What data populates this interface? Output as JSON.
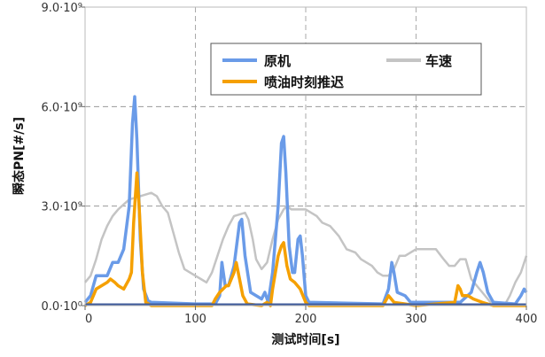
{
  "chart_data": {
    "type": "line",
    "title": "",
    "xlabel": "测试时间[s]",
    "ylabel": "瞬态PN[#/s]",
    "xlim": [
      0,
      400
    ],
    "ylim": [
      0,
      9000000000.0
    ],
    "x_ticks": [
      "0",
      "100",
      "200",
      "300",
      "400"
    ],
    "y_ticks": [
      "0.0·10⁰",
      "3.0·10⁹",
      "6.0·10⁹",
      "9.0·10⁹"
    ],
    "grid": "dashed, at x=100/200/300 and y=3.0·10⁹/6.0·10⁹",
    "legend_position": "top-right",
    "series": [
      {
        "name": "原机",
        "color": "#6a9be8",
        "points": [
          [
            0,
            0.1
          ],
          [
            5,
            0.3
          ],
          [
            10,
            0.9
          ],
          [
            15,
            0.9
          ],
          [
            20,
            0.9
          ],
          [
            25,
            1.3
          ],
          [
            30,
            1.3
          ],
          [
            35,
            1.7
          ],
          [
            40,
            3.0
          ],
          [
            43,
            5.5
          ],
          [
            45,
            6.3
          ],
          [
            47,
            5.0
          ],
          [
            50,
            2.0
          ],
          [
            53,
            0.5
          ],
          [
            57,
            0.15
          ],
          [
            60,
            0.1
          ],
          [
            100,
            0.05
          ],
          [
            118,
            0.05
          ],
          [
            122,
            0.3
          ],
          [
            124,
            1.3
          ],
          [
            127,
            0.6
          ],
          [
            130,
            0.6
          ],
          [
            135,
            1.2
          ],
          [
            140,
            2.5
          ],
          [
            142,
            2.6
          ],
          [
            145,
            1.5
          ],
          [
            150,
            0.4
          ],
          [
            155,
            0.3
          ],
          [
            160,
            0.2
          ],
          [
            163,
            0.4
          ],
          [
            166,
            0.1
          ],
          [
            170,
            1.0
          ],
          [
            175,
            3.0
          ],
          [
            178,
            4.9
          ],
          [
            180,
            5.1
          ],
          [
            182,
            4.0
          ],
          [
            185,
            1.8
          ],
          [
            188,
            1.0
          ],
          [
            190,
            1.0
          ],
          [
            193,
            2.0
          ],
          [
            195,
            2.1
          ],
          [
            197,
            1.5
          ],
          [
            200,
            0.3
          ],
          [
            203,
            0.1
          ],
          [
            270,
            0.05
          ],
          [
            275,
            0.5
          ],
          [
            278,
            1.3
          ],
          [
            280,
            1.0
          ],
          [
            283,
            0.4
          ],
          [
            290,
            0.3
          ],
          [
            295,
            0.1
          ],
          [
            340,
            0.1
          ],
          [
            350,
            0.4
          ],
          [
            355,
            1.0
          ],
          [
            358,
            1.3
          ],
          [
            361,
            1.0
          ],
          [
            365,
            0.4
          ],
          [
            370,
            0.1
          ],
          [
            390,
            0.05
          ],
          [
            395,
            0.3
          ],
          [
            398,
            0.5
          ],
          [
            400,
            0.4
          ]
        ]
      },
      {
        "name": "喷油时刻推迟",
        "color": "#f5a000",
        "points": [
          [
            0,
            0
          ],
          [
            5,
            0.1
          ],
          [
            10,
            0.5
          ],
          [
            15,
            0.6
          ],
          [
            20,
            0.7
          ],
          [
            23,
            0.8
          ],
          [
            27,
            0.7
          ],
          [
            30,
            0.6
          ],
          [
            35,
            0.5
          ],
          [
            40,
            0.8
          ],
          [
            42,
            1.0
          ],
          [
            44,
            2.5
          ],
          [
            47,
            4.0
          ],
          [
            49,
            3.0
          ],
          [
            52,
            1.0
          ],
          [
            55,
            0.1
          ],
          [
            60,
            0
          ],
          [
            115,
            0
          ],
          [
            118,
            0.2
          ],
          [
            122,
            0.4
          ],
          [
            128,
            0.6
          ],
          [
            130,
            0.6
          ],
          [
            135,
            1.0
          ],
          [
            137,
            1.3
          ],
          [
            140,
            0.8
          ],
          [
            143,
            0.3
          ],
          [
            147,
            0.05
          ],
          [
            160,
            0
          ],
          [
            165,
            0.1
          ],
          [
            168,
            0
          ],
          [
            170,
            0.5
          ],
          [
            175,
            1.5
          ],
          [
            178,
            1.8
          ],
          [
            180,
            1.9
          ],
          [
            183,
            1.2
          ],
          [
            186,
            0.8
          ],
          [
            190,
            0.7
          ],
          [
            195,
            0.5
          ],
          [
            200,
            0.1
          ],
          [
            203,
            0
          ],
          [
            270,
            0
          ],
          [
            275,
            0.3
          ],
          [
            280,
            0.1
          ],
          [
            290,
            0.05
          ],
          [
            300,
            0
          ],
          [
            335,
            0.1
          ],
          [
            338,
            0.6
          ],
          [
            340,
            0.5
          ],
          [
            342,
            0.3
          ],
          [
            347,
            0.3
          ],
          [
            352,
            0.2
          ],
          [
            360,
            0.1
          ],
          [
            370,
            0
          ],
          [
            400,
            0
          ]
        ]
      },
      {
        "name": "车速",
        "color": "#c4c4c4",
        "points": [
          [
            0,
            0.7
          ],
          [
            5,
            0.9
          ],
          [
            10,
            1.4
          ],
          [
            15,
            2.0
          ],
          [
            20,
            2.4
          ],
          [
            25,
            2.7
          ],
          [
            30,
            2.9
          ],
          [
            40,
            3.2
          ],
          [
            50,
            3.3
          ],
          [
            60,
            3.4
          ],
          [
            65,
            3.3
          ],
          [
            70,
            3.0
          ],
          [
            75,
            2.8
          ],
          [
            80,
            2.2
          ],
          [
            85,
            1.6
          ],
          [
            90,
            1.1
          ],
          [
            95,
            1.0
          ],
          [
            100,
            0.9
          ],
          [
            105,
            0.8
          ],
          [
            110,
            0.7
          ],
          [
            115,
            1.0
          ],
          [
            120,
            1.5
          ],
          [
            125,
            2.0
          ],
          [
            130,
            2.4
          ],
          [
            135,
            2.7
          ],
          [
            145,
            2.8
          ],
          [
            148,
            2.6
          ],
          [
            152,
            2.0
          ],
          [
            155,
            1.4
          ],
          [
            160,
            1.1
          ],
          [
            165,
            1.3
          ],
          [
            170,
            2.0
          ],
          [
            175,
            2.6
          ],
          [
            180,
            2.9
          ],
          [
            183,
            3.0
          ],
          [
            187,
            2.9
          ],
          [
            200,
            2.9
          ],
          [
            205,
            2.8
          ],
          [
            210,
            2.7
          ],
          [
            215,
            2.5
          ],
          [
            222,
            2.4
          ],
          [
            230,
            2.1
          ],
          [
            237,
            1.7
          ],
          [
            245,
            1.6
          ],
          [
            250,
            1.4
          ],
          [
            260,
            1.2
          ],
          [
            265,
            1.0
          ],
          [
            270,
            0.9
          ],
          [
            275,
            0.9
          ],
          [
            280,
            1.1
          ],
          [
            285,
            1.5
          ],
          [
            290,
            1.5
          ],
          [
            300,
            1.7
          ],
          [
            310,
            1.7
          ],
          [
            318,
            1.7
          ],
          [
            325,
            1.4
          ],
          [
            330,
            1.2
          ],
          [
            335,
            1.2
          ],
          [
            340,
            1.4
          ],
          [
            345,
            1.4
          ],
          [
            350,
            0.8
          ],
          [
            355,
            0.6
          ],
          [
            360,
            0.4
          ],
          [
            365,
            0.2
          ],
          [
            370,
            0
          ],
          [
            380,
            0
          ],
          [
            385,
            0.3
          ],
          [
            390,
            0.7
          ],
          [
            395,
            1.0
          ],
          [
            400,
            1.5
          ]
        ]
      }
    ],
    "y_unit_of_points": "1e9",
    "baseline_color": "#3d5a9a"
  }
}
